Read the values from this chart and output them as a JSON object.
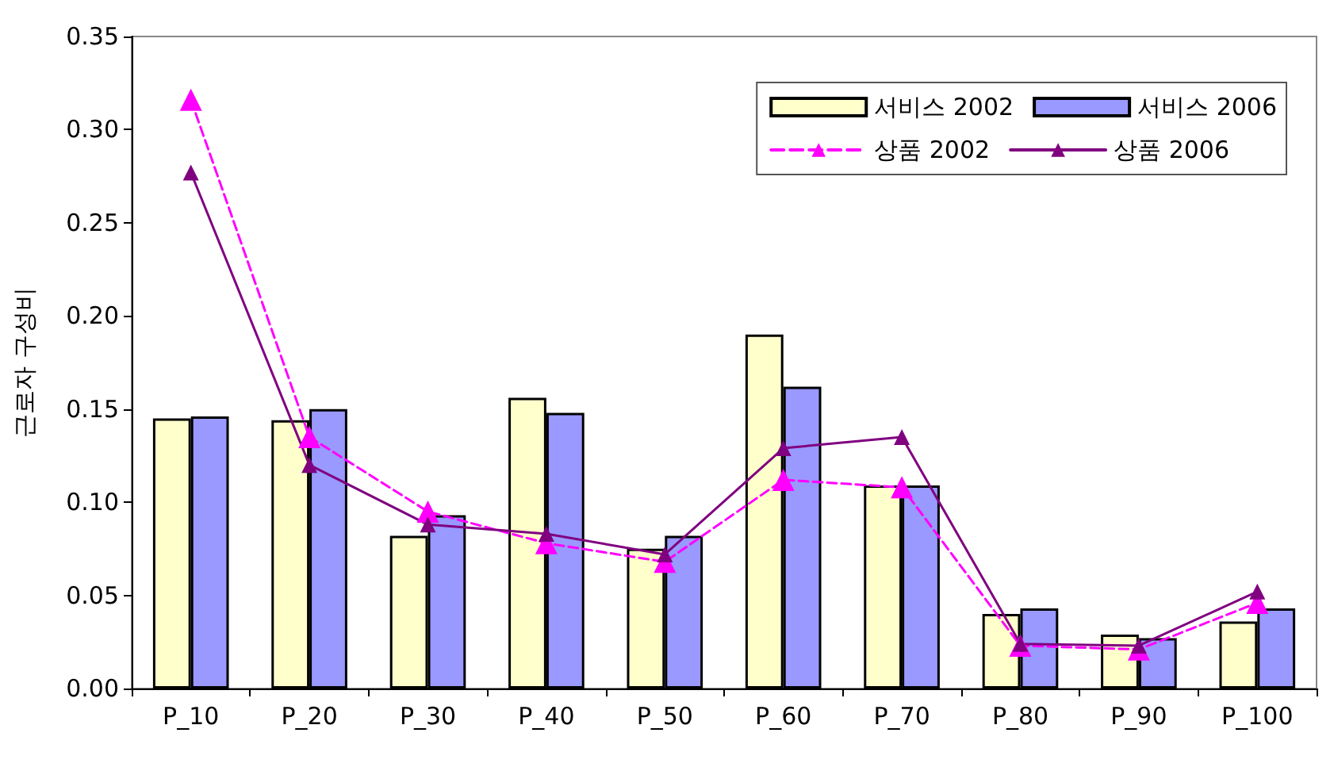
{
  "chart_data": {
    "type": "bar",
    "ylabel": "근로자 구성비",
    "categories": [
      "P_10",
      "P_20",
      "P_30",
      "P_40",
      "P_50",
      "P_60",
      "P_70",
      "P_80",
      "P_90",
      "P_100"
    ],
    "series": [
      {
        "name": "서비스 2002",
        "color": "#ffffcc",
        "values": [
          0.145,
          0.144,
          0.082,
          0.156,
          0.075,
          0.19,
          0.109,
          0.04,
          0.029,
          0.036
        ]
      },
      {
        "name": "서비스 2006",
        "color": "#9999ff",
        "values": [
          0.146,
          0.15,
          0.093,
          0.148,
          0.082,
          0.162,
          0.109,
          0.043,
          0.027,
          0.043
        ]
      },
      {
        "name": "상품 2002",
        "type": "line",
        "color": "#ff00ff",
        "line_style": "dashed",
        "marker": "triangle",
        "values": [
          0.316,
          0.135,
          0.095,
          0.078,
          0.068,
          0.112,
          0.108,
          0.023,
          0.021,
          0.046
        ]
      },
      {
        "name": "상품 2006",
        "type": "line",
        "color": "#800080",
        "line_style": "solid",
        "marker": "triangle",
        "values": [
          0.277,
          0.12,
          0.088,
          0.083,
          0.072,
          0.129,
          0.135,
          0.024,
          0.023,
          0.052
        ]
      }
    ],
    "ylim": [
      0,
      0.35
    ],
    "yticks": [
      {
        "value": 0,
        "label": "0.00"
      },
      {
        "value": 0.05,
        "label": "0.05"
      },
      {
        "value": 0.1,
        "label": "0.10"
      },
      {
        "value": 0.15,
        "label": "0.15"
      },
      {
        "value": 0.2,
        "label": "0.20"
      },
      {
        "value": 0.25,
        "label": "0.25"
      },
      {
        "value": 0.3,
        "label": "0.30"
      },
      {
        "value": 0.35,
        "label": "0.35"
      }
    ],
    "grid": false,
    "legend": "top right"
  }
}
